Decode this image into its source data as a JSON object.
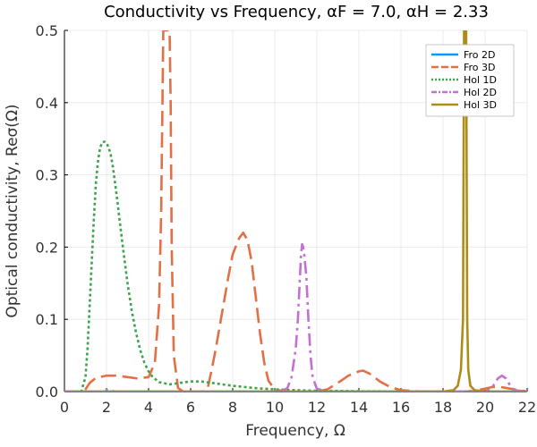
{
  "chart_data": {
    "type": "line",
    "title": "Conductivity vs Frequency, αF = 7.0, αH = 2.33",
    "xlabel": "Frequency, Ω",
    "ylabel": "Optical conductivity, Reσ(Ω)",
    "xlim": [
      0,
      22
    ],
    "ylim": [
      0,
      0.5
    ],
    "xticks": [
      0,
      2,
      4,
      6,
      8,
      10,
      12,
      14,
      16,
      18,
      20,
      22
    ],
    "yticks": [
      0.0,
      0.1,
      0.2,
      0.3,
      0.4,
      0.5
    ],
    "xtick_labels": [
      "0",
      "2",
      "4",
      "6",
      "8",
      "10",
      "12",
      "14",
      "16",
      "18",
      "20",
      "22"
    ],
    "ytick_labels": [
      "0.0",
      "0.1",
      "0.2",
      "0.3",
      "0.4",
      "0.5"
    ],
    "grid": true,
    "legend_position": "top-right",
    "series": [
      {
        "name": "Fro 2D",
        "color": "#009AFA",
        "dash": "solid",
        "x": [
          0,
          22
        ],
        "y": [
          0,
          0
        ]
      },
      {
        "name": "Fro 3D",
        "color": "#E26F46",
        "dash": "dash",
        "x": [
          0,
          0.9,
          1.0,
          1.2,
          1.5,
          2.0,
          2.5,
          3.0,
          3.5,
          4.0,
          4.3,
          4.5,
          4.6,
          4.7,
          4.8,
          4.9,
          5.0,
          5.05,
          5.1,
          5.2,
          5.4,
          5.6,
          5.8,
          6.0,
          6.3,
          6.6,
          6.8,
          7.0,
          7.2,
          7.5,
          7.8,
          8.0,
          8.3,
          8.5,
          8.7,
          8.9,
          9.1,
          9.3,
          9.5,
          9.7,
          10.0,
          10.5,
          11.0,
          12.0,
          12.5,
          13.0,
          13.5,
          14.0,
          14.2,
          14.5,
          15.0,
          15.5,
          16.0,
          17.0,
          18.0,
          19.0,
          19.5,
          20.0,
          20.3,
          20.6,
          21.0,
          22.0
        ],
        "y": [
          0,
          0,
          0.003,
          0.012,
          0.019,
          0.022,
          0.022,
          0.02,
          0.018,
          0.02,
          0.04,
          0.12,
          0.25,
          0.5,
          0.5,
          0.5,
          0.5,
          0.4,
          0.2,
          0.05,
          0.005,
          0.001,
          0,
          0,
          0,
          0,
          0.003,
          0.03,
          0.06,
          0.11,
          0.16,
          0.19,
          0.212,
          0.22,
          0.21,
          0.18,
          0.13,
          0.08,
          0.04,
          0.015,
          0.003,
          0,
          0,
          0,
          0.003,
          0.012,
          0.022,
          0.028,
          0.029,
          0.025,
          0.014,
          0.006,
          0.002,
          0,
          0,
          0,
          0.001,
          0.004,
          0.006,
          0.007,
          0.005,
          0
        ]
      },
      {
        "name": "Hol 1D",
        "color": "#3DA44D",
        "dash": "dot",
        "x": [
          0,
          0.8,
          1.0,
          1.1,
          1.2,
          1.3,
          1.4,
          1.5,
          1.6,
          1.7,
          1.8,
          1.9,
          2.0,
          2.1,
          2.2,
          2.3,
          2.4,
          2.5,
          2.6,
          2.8,
          3.0,
          3.2,
          3.4,
          3.6,
          3.8,
          4.0,
          4.2,
          4.5,
          5.0,
          5.5,
          6.0,
          6.5,
          7.0,
          7.5,
          8.0,
          9.0,
          10.0,
          11.0,
          12.0,
          13.0,
          14.0,
          16.0,
          18.0,
          20.0,
          22.0
        ],
        "y": [
          0,
          0,
          0.02,
          0.06,
          0.12,
          0.18,
          0.24,
          0.29,
          0.32,
          0.338,
          0.345,
          0.346,
          0.344,
          0.338,
          0.328,
          0.312,
          0.29,
          0.268,
          0.243,
          0.195,
          0.15,
          0.112,
          0.082,
          0.058,
          0.04,
          0.028,
          0.02,
          0.013,
          0.01,
          0.012,
          0.014,
          0.014,
          0.012,
          0.01,
          0.008,
          0.005,
          0.003,
          0.002,
          0.001,
          0.001,
          0.0005,
          0.0002,
          0.0001,
          0,
          0
        ]
      },
      {
        "name": "Hol 2D",
        "color": "#C271D2",
        "dash": "dashdot",
        "x": [
          0,
          1.8,
          2.0,
          2.2,
          2.5,
          10.3,
          10.6,
          10.8,
          11.0,
          11.1,
          11.2,
          11.25,
          11.3,
          11.35,
          11.4,
          11.5,
          11.6,
          11.7,
          11.8,
          12.0,
          12.5,
          20.0,
          20.3,
          20.6,
          20.8,
          21.0,
          21.2,
          21.4,
          22.0
        ],
        "y": [
          0,
          0,
          0.002,
          0.001,
          0,
          0,
          0.005,
          0.02,
          0.06,
          0.1,
          0.16,
          0.19,
          0.204,
          0.2,
          0.19,
          0.16,
          0.1,
          0.05,
          0.02,
          0.004,
          0,
          0,
          0.004,
          0.018,
          0.022,
          0.018,
          0.008,
          0.002,
          0
        ]
      },
      {
        "name": "Hol 3D",
        "color": "#AC8D18",
        "dash": "solid",
        "x": [
          0,
          18.0,
          18.5,
          18.7,
          18.85,
          18.95,
          19.0,
          19.05,
          19.1,
          19.15,
          19.2,
          19.3,
          19.5,
          20.0,
          22.0
        ],
        "y": [
          0,
          0,
          0.002,
          0.008,
          0.03,
          0.1,
          0.5,
          0.5,
          0.5,
          0.1,
          0.03,
          0.008,
          0.002,
          0,
          0
        ]
      }
    ]
  }
}
